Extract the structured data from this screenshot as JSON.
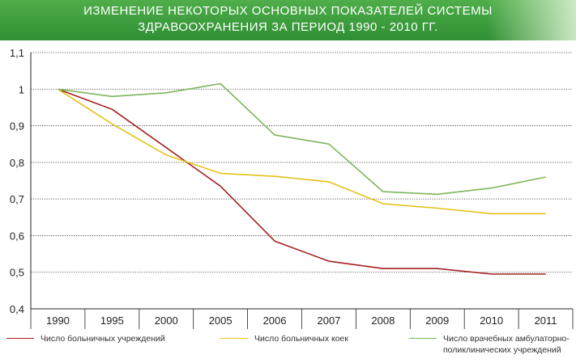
{
  "banner": {
    "title_line1": "ИЗМЕНЕНИЕ НЕКОТОРЫХ ОСНОВНЫХ ПОКАЗАТЕЛЕЙ СИСТЕМЫ",
    "title_line2": "ЗДРАВООХРАНЕНИЯ ЗА ПЕРИОД 1990 - 2010 ГГ.",
    "color": "#3a9a3c"
  },
  "chart_data": {
    "type": "line",
    "title": "ИЗМЕНЕНИЕ НЕКОТОРЫХ ОСНОВНЫХ ПОКАЗАТЕЛЕЙ СИСТЕМЫ ЗДРАВООХРАНЕНИЯ ЗА ПЕРИОД 1990 - 2010 ГГ.",
    "xlabel": "",
    "ylabel": "",
    "categories": [
      "1990",
      "1995",
      "2000",
      "2005",
      "2006",
      "2007",
      "2008",
      "2009",
      "2010",
      "2011"
    ],
    "ylim": [
      0.4,
      1.1
    ],
    "yticks": [
      "0,4",
      "0,5",
      "0,6",
      "0,7",
      "0,8",
      "0,9",
      "1",
      "1,1"
    ],
    "grid": true,
    "legend_position": "bottom",
    "series": [
      {
        "name": "Число больничных учреждений",
        "color": "#a32222",
        "values": [
          1.0,
          0.945,
          0.84,
          0.735,
          0.585,
          0.53,
          0.51,
          0.51,
          0.495,
          0.495
        ]
      },
      {
        "name": "Число больничных коек",
        "color": "#e3c21a",
        "values": [
          1.0,
          0.905,
          0.82,
          0.77,
          0.762,
          0.747,
          0.687,
          0.675,
          0.66,
          0.66
        ]
      },
      {
        "name": "Число врачебных амбулаторно-поликлинических учреждений",
        "name_line1": "Число врачебных амбулаторно-",
        "name_line2": "поликлинических учреждений",
        "color": "#7cb65a",
        "values": [
          1.0,
          0.98,
          0.99,
          1.015,
          0.875,
          0.85,
          0.72,
          0.713,
          0.73,
          0.76
        ]
      }
    ]
  }
}
